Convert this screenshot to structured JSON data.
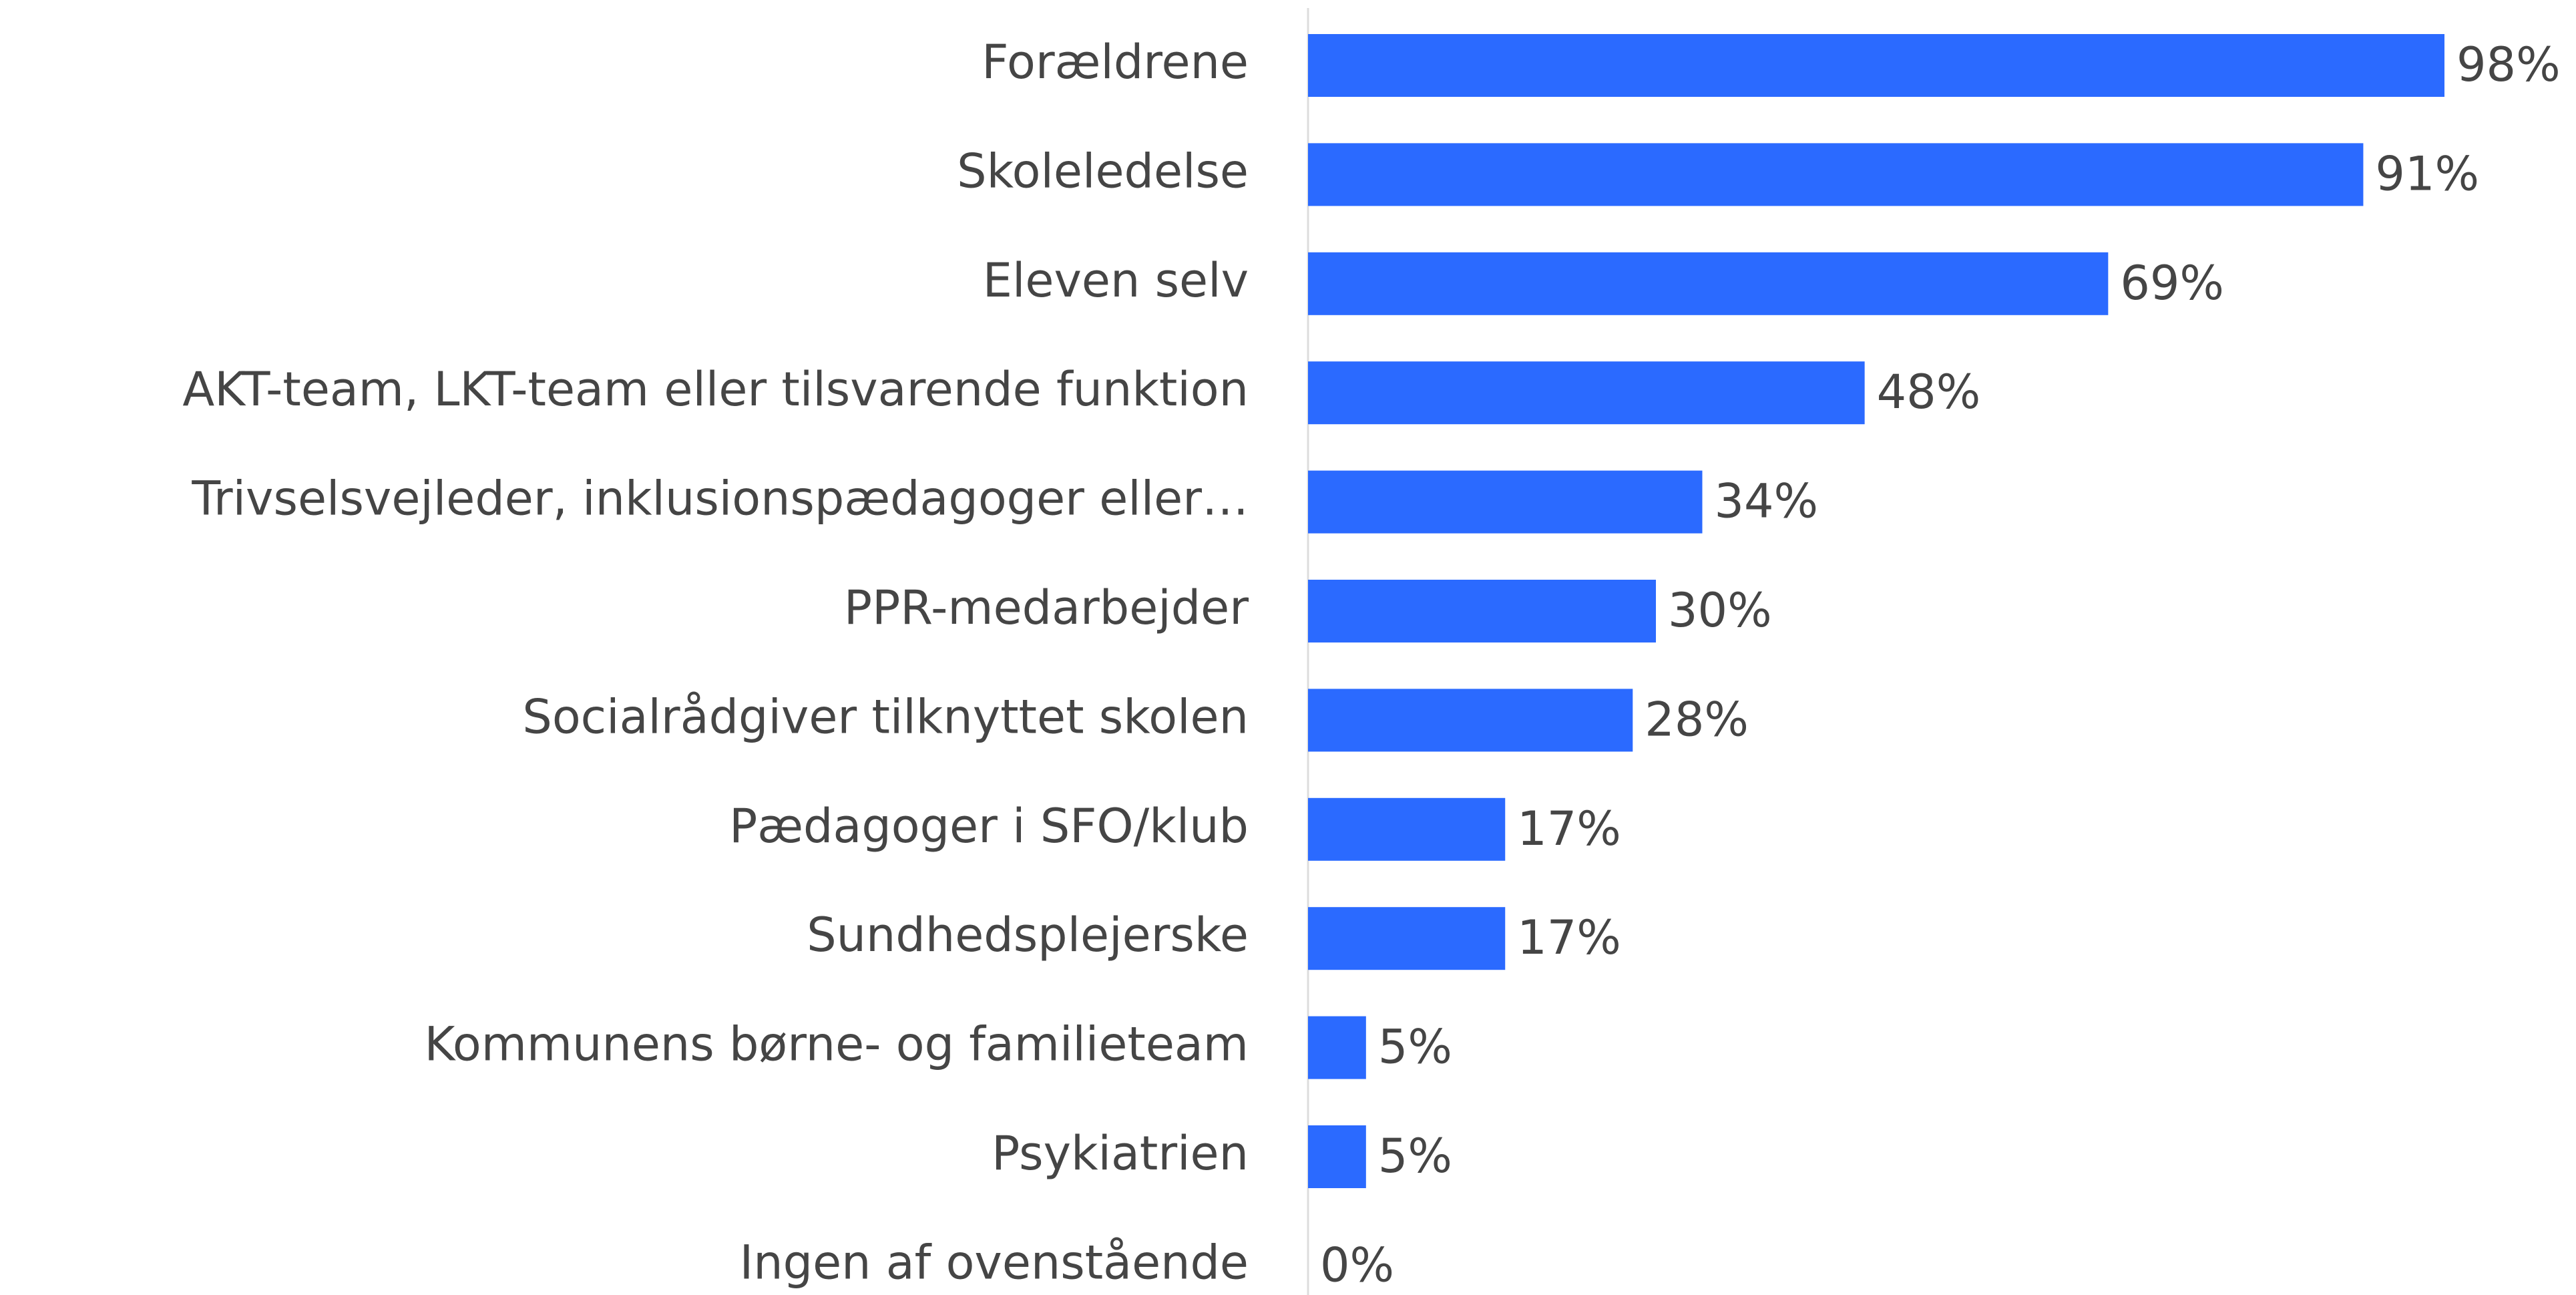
{
  "chart_data": {
    "type": "barh",
    "categories": [
      "Forældrene",
      "Skoleledelse",
      "Eleven selv",
      "AKT-team, LKT-team eller tilsvarende funktion",
      "Trivselsvejleder, inklusionspædagoger eller…",
      "PPR-medarbejder",
      "Socialrådgiver tilknyttet skolen",
      "Pædagoger i SFO/klub",
      "Sundhedsplejerske",
      "Kommunens børne- og familieteam",
      "Psykiatrien",
      "Ingen af ovenstående"
    ],
    "values": [
      98,
      91,
      69,
      48,
      34,
      30,
      28,
      17,
      17,
      5,
      5,
      0
    ],
    "value_labels": [
      "98%",
      "91%",
      "69%",
      "48%",
      "34%",
      "30%",
      "28%",
      "17%",
      "17%",
      "5%",
      "5%",
      "0%"
    ],
    "color": "#2b6aff"
  }
}
